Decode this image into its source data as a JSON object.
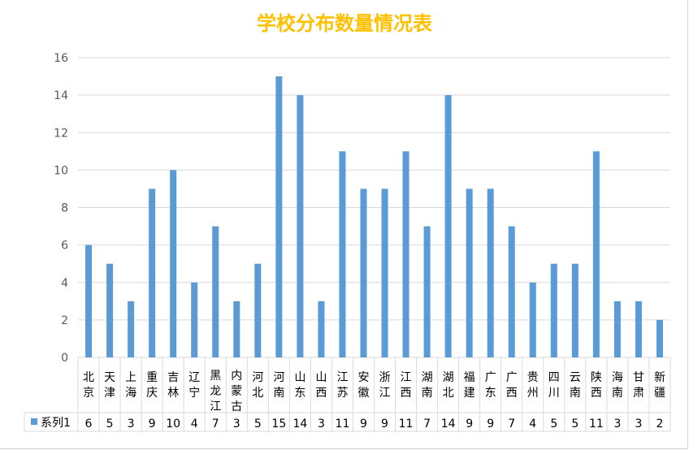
{
  "chart_data": {
    "type": "bar",
    "title": "学校分布数量情况表",
    "categories": [
      "北京",
      "天津",
      "上海",
      "重庆",
      "吉林",
      "辽宁",
      "黑龙江",
      "内蒙古",
      "河北",
      "河南",
      "山东",
      "山西",
      "江苏",
      "安徽",
      "浙江",
      "江西",
      "湖南",
      "湖北",
      "福建",
      "广东",
      "广西",
      "贵州",
      "四川",
      "云南",
      "陕西",
      "海南",
      "甘肃",
      "新疆"
    ],
    "series": [
      {
        "name": "系列1",
        "values": [
          6,
          5,
          3,
          9,
          10,
          4,
          7,
          3,
          5,
          15,
          14,
          3,
          11,
          9,
          9,
          11,
          7,
          14,
          9,
          9,
          7,
          4,
          5,
          5,
          11,
          3,
          3,
          2
        ]
      }
    ],
    "ylim": [
      0,
      16
    ],
    "yticks": [
      0,
      2,
      4,
      6,
      8,
      10,
      12,
      14,
      16
    ],
    "grid": true,
    "data_table": true,
    "colors": {
      "bar": "#5b9bd5",
      "title": "#ffc000",
      "grid": "#d9d9d9",
      "text": "#000000"
    }
  }
}
